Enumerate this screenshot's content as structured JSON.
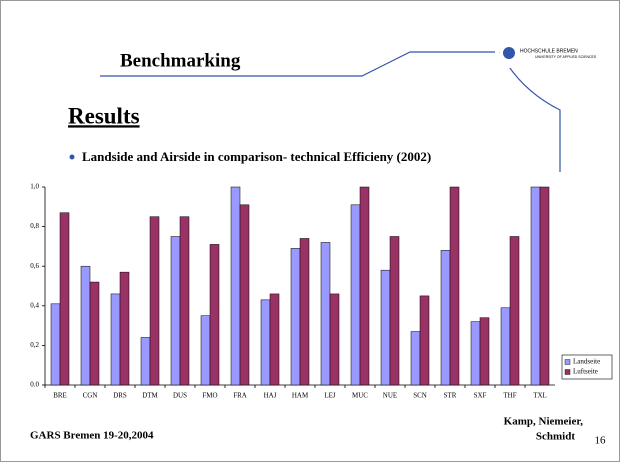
{
  "slide": {
    "header": "Benchmarking",
    "logo": [
      "HOCHSCHULE BREMEN",
      "UNIVERSITY OF APPLIED SCIENCES"
    ],
    "heading": "Results",
    "bullet": "Landside and Airside in comparison- technical Efficieny (2002)",
    "footer_left": "GARS Bremen 19-20,2004",
    "footer_right": [
      "Kamp, Niemeier,",
      "Schmidt"
    ],
    "page": "16"
  },
  "chart_data": {
    "type": "bar",
    "categories": [
      "BRE",
      "CGN",
      "DRS",
      "DTM",
      "DUS",
      "FMO",
      "FRA",
      "HAJ",
      "HAM",
      "LEJ",
      "MUC",
      "NUE",
      "SCN",
      "STR",
      "SXF",
      "THF",
      "TXL"
    ],
    "series": [
      {
        "name": "Landseite",
        "color": "#9999ff",
        "values": [
          0.41,
          0.6,
          0.46,
          0.24,
          0.75,
          0.35,
          1.0,
          0.43,
          0.69,
          0.72,
          0.91,
          0.58,
          0.27,
          0.68,
          0.32,
          0.39,
          1.0
        ]
      },
      {
        "name": "Luftseite",
        "color": "#993366",
        "values": [
          0.87,
          0.52,
          0.57,
          0.85,
          0.85,
          0.71,
          0.91,
          0.46,
          0.74,
          0.46,
          1.0,
          0.75,
          0.45,
          1.0,
          0.34,
          0.75,
          1.0
        ]
      }
    ],
    "ylim": [
      0,
      1
    ],
    "yticks": [
      {
        "value": 0,
        "label": "0.0"
      },
      {
        "value": 0.2,
        "label": "0,2"
      },
      {
        "value": 0.4,
        "label": "0,4"
      },
      {
        "value": 0.6,
        "label": "0,6"
      },
      {
        "value": 0.8,
        "label": "0,8"
      },
      {
        "value": 1,
        "label": "1,0"
      }
    ],
    "grid": false,
    "legend": "right"
  }
}
